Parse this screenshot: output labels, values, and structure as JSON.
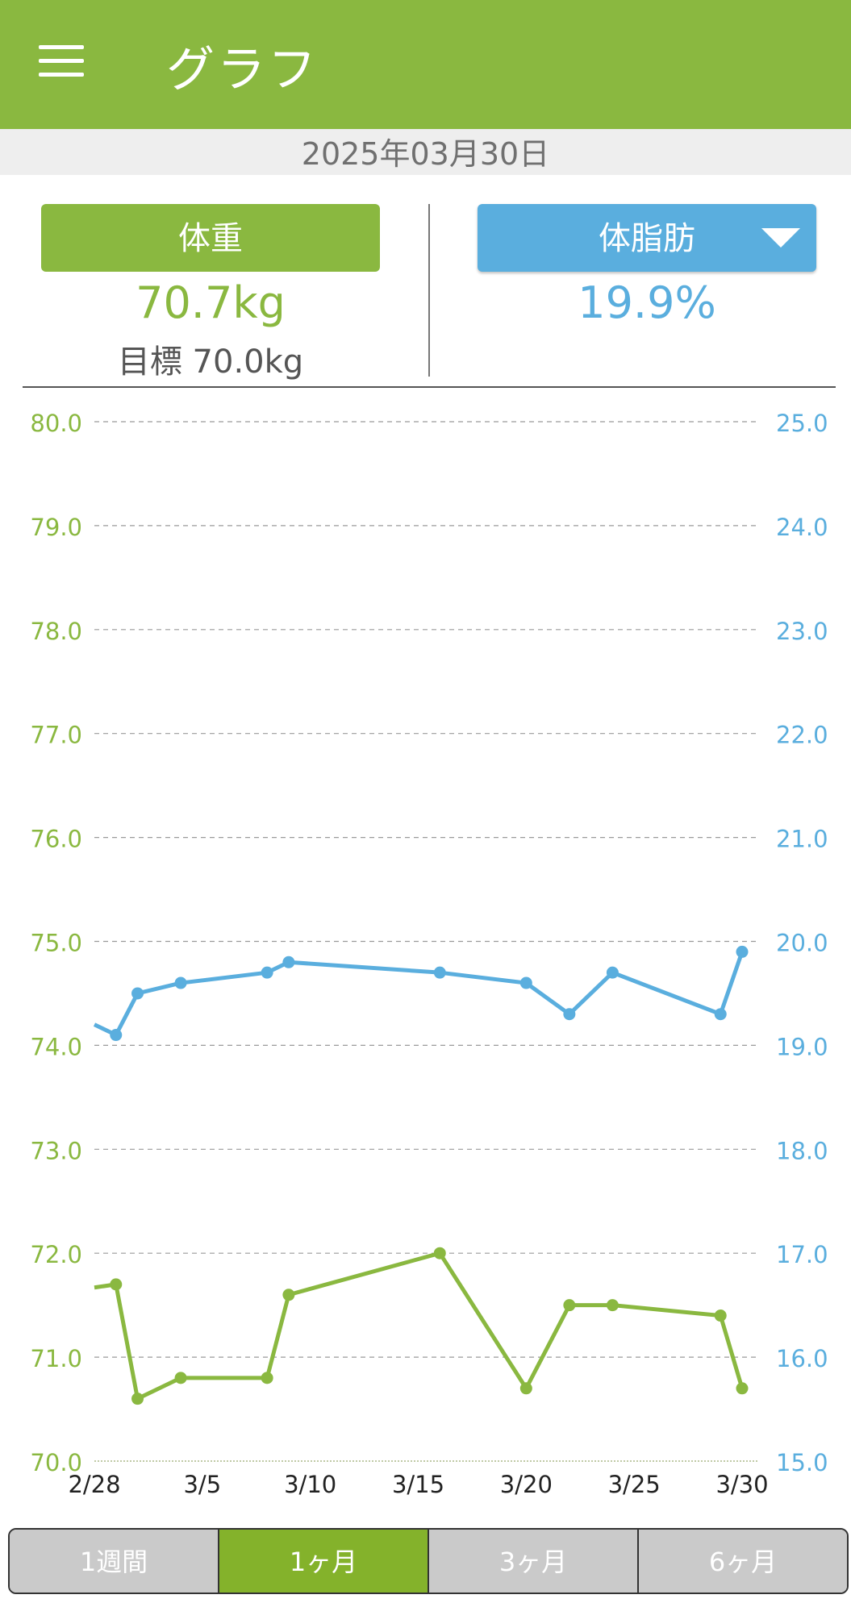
{
  "appbar": {
    "title": "グラフ",
    "menu_icon": "hamburger-menu-icon"
  },
  "date": "2025年03月30日",
  "weight": {
    "label": "体重",
    "value": "70.7kg",
    "target": "目標 70.0kg"
  },
  "body_fat": {
    "label": "体脂肪",
    "value": "19.9%",
    "dropdown_icon": "triangle-down-icon"
  },
  "colors": {
    "green": "#8ab840",
    "blue": "#5aaede",
    "tab_active": "#84b22b",
    "tab_inactive": "#cacaca"
  },
  "tabs": [
    {
      "label": "1週間",
      "active": false
    },
    {
      "label": "1ヶ月",
      "active": true
    },
    {
      "label": "3ヶ月",
      "active": false
    },
    {
      "label": "6ヶ月",
      "active": false
    }
  ],
  "chart_data": {
    "type": "line",
    "x_tick_labels": [
      "2/28",
      "3/5",
      "3/10",
      "3/15",
      "3/20",
      "3/25",
      "3/30"
    ],
    "x_tick_days": [
      0,
      5,
      10,
      15,
      20,
      25,
      30
    ],
    "y_left": {
      "ylim": [
        70.0,
        80.0
      ],
      "ticks": [
        "70.0",
        "71.0",
        "72.0",
        "73.0",
        "74.0",
        "75.0",
        "76.0",
        "77.0",
        "78.0",
        "79.0",
        "80.0"
      ]
    },
    "y_right": {
      "ylim": [
        15.0,
        25.0
      ],
      "ticks": [
        "15.0",
        "16.0",
        "17.0",
        "18.0",
        "19.0",
        "20.0",
        "21.0",
        "22.0",
        "23.0",
        "24.0",
        "25.0"
      ]
    },
    "grid": true,
    "series": [
      {
        "axis": "left",
        "color": "#8ab840",
        "points": [
          {
            "day": 0,
            "value": 71.67,
            "marker": false
          },
          {
            "day": 1,
            "value": 71.7,
            "marker": true
          },
          {
            "day": 2,
            "value": 70.6,
            "marker": true
          },
          {
            "day": 4,
            "value": 70.8,
            "marker": true
          },
          {
            "day": 8,
            "value": 70.8,
            "marker": true
          },
          {
            "day": 9,
            "value": 71.6,
            "marker": true
          },
          {
            "day": 16,
            "value": 72.0,
            "marker": true
          },
          {
            "day": 20,
            "value": 70.7,
            "marker": true
          },
          {
            "day": 22,
            "value": 71.5,
            "marker": true
          },
          {
            "day": 24,
            "value": 71.5,
            "marker": true
          },
          {
            "day": 29,
            "value": 71.4,
            "marker": true
          },
          {
            "day": 30,
            "value": 70.7,
            "marker": true
          }
        ]
      },
      {
        "axis": "right",
        "color": "#5aaede",
        "points": [
          {
            "day": 0,
            "value": 19.2,
            "marker": false
          },
          {
            "day": 1,
            "value": 19.1,
            "marker": true
          },
          {
            "day": 2,
            "value": 19.5,
            "marker": true
          },
          {
            "day": 4,
            "value": 19.6,
            "marker": true
          },
          {
            "day": 8,
            "value": 19.7,
            "marker": true
          },
          {
            "day": 9,
            "value": 19.8,
            "marker": true
          },
          {
            "day": 16,
            "value": 19.7,
            "marker": true
          },
          {
            "day": 20,
            "value": 19.6,
            "marker": true
          },
          {
            "day": 22,
            "value": 19.3,
            "marker": true
          },
          {
            "day": 24,
            "value": 19.7,
            "marker": true
          },
          {
            "day": 29,
            "value": 19.3,
            "marker": true
          },
          {
            "day": 30,
            "value": 19.9,
            "marker": true
          }
        ]
      }
    ]
  }
}
